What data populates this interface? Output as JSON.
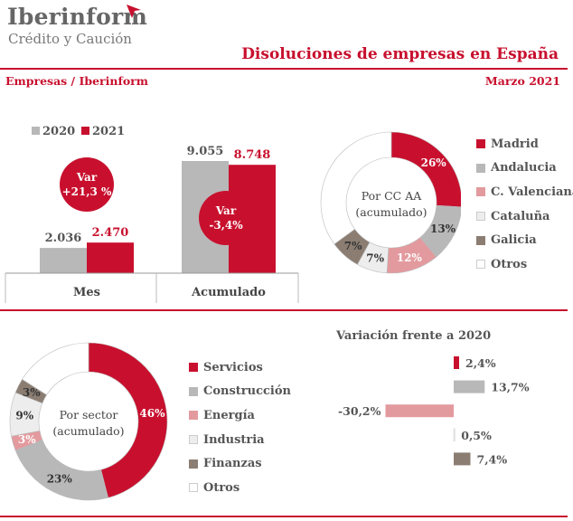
{
  "brand": {
    "name": "Iberinform",
    "tagline": "Crédito y Caución"
  },
  "header": {
    "title": "Disoluciones de empresas en España",
    "source": "Empresas / Iberinform",
    "period": "Marzo 2021"
  },
  "colors": {
    "red": "#c8102e",
    "grey": "#b8b8b8",
    "pink": "#e39a9e",
    "light": "#ededed",
    "brown": "#8b7d72",
    "white": "#ffffff"
  },
  "chart_data": [
    {
      "type": "bar",
      "categories": [
        "Mes",
        "Acumulado"
      ],
      "series": [
        {
          "name": "2020",
          "values": [
            2036,
            9055
          ],
          "labels": [
            "2.036",
            "9.055"
          ],
          "color": "#b8b8b8"
        },
        {
          "name": "2021",
          "values": [
            2470,
            8748
          ],
          "labels": [
            "2.470",
            "8.748"
          ],
          "color": "#c8102e"
        }
      ],
      "ylim": [
        0,
        9055
      ],
      "annotations": [
        {
          "category": "Mes",
          "lines": [
            "Var",
            "+21,3 %"
          ]
        },
        {
          "category": "Acumulado",
          "lines": [
            "Var",
            "-3,4%"
          ]
        }
      ]
    },
    {
      "type": "pie",
      "center_label": [
        "Por CC AA",
        "(acumulado)"
      ],
      "slices": [
        {
          "label": "Madrid",
          "value": 26,
          "text": "26%",
          "color": "#c8102e"
        },
        {
          "label": "Andalucia",
          "value": 13,
          "text": "13%",
          "color": "#b8b8b8"
        },
        {
          "label": "C. Valenciana",
          "value": 12,
          "text": "12%",
          "color": "#e39a9e"
        },
        {
          "label": "Cataluña",
          "value": 7,
          "text": "7%",
          "color": "#ededed"
        },
        {
          "label": "Galicia",
          "value": 7,
          "text": "7%",
          "color": "#8b7d72"
        },
        {
          "label": "Otros",
          "value": 35,
          "text": "",
          "color": "#ffffff"
        }
      ]
    },
    {
      "type": "pie",
      "center_label": [
        "Por sector",
        "(acumulado)"
      ],
      "slices": [
        {
          "label": "Servicios",
          "value": 46,
          "text": "46%",
          "color": "#c8102e"
        },
        {
          "label": "Construcción",
          "value": 23,
          "text": "23%",
          "color": "#b8b8b8"
        },
        {
          "label": "Energía",
          "value": 3,
          "text": "3%",
          "color": "#e39a9e"
        },
        {
          "label": "Industria",
          "value": 9,
          "text": "9%",
          "color": "#ededed"
        },
        {
          "label": "Finanzas",
          "value": 3,
          "text": "3%",
          "color": "#8b7d72"
        },
        {
          "label": "Otros",
          "value": 16,
          "text": "",
          "color": "#ffffff"
        }
      ]
    },
    {
      "type": "bar",
      "orientation": "horizontal",
      "title": "Variación frente a 2020",
      "categories": [
        "Servicios",
        "Construcción",
        "Energía",
        "Industria",
        "Finanzas"
      ],
      "values": [
        2.4,
        13.7,
        -30.2,
        0.5,
        7.4
      ],
      "labels": [
        "2,4%",
        "13,7%",
        "-30,2%",
        "0,5%",
        "7,4%"
      ],
      "colors": [
        "#c8102e",
        "#b8b8b8",
        "#e39a9e",
        "#ededed",
        "#8b7d72"
      ]
    }
  ]
}
